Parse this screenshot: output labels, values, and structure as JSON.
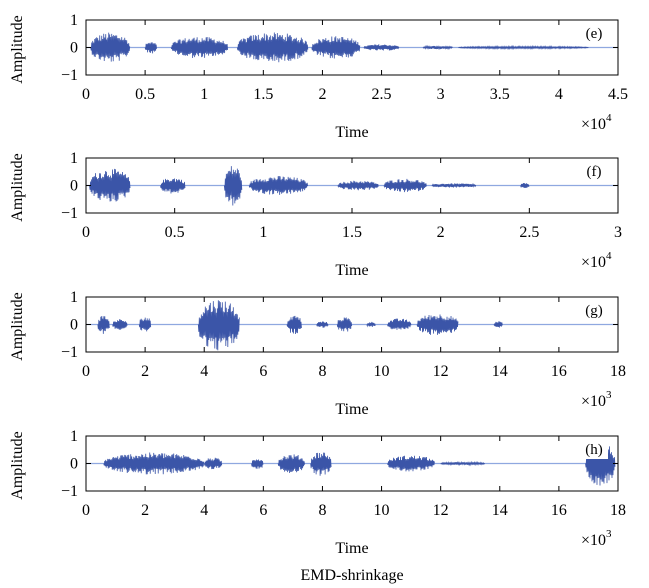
{
  "figure": {
    "caption": "EMD-shrinkage",
    "signal_color": "#3b55a8",
    "baseline_color": "#8fa8e0"
  },
  "chart_data": [
    {
      "type": "line",
      "panel": "(e)",
      "xlabel": "Time",
      "ylabel": "Amplitude",
      "xlim": [
        0,
        45000
      ],
      "ylim": [
        -1,
        1
      ],
      "x_scale": "×10^4",
      "xtick_labels": [
        "0",
        "0.5",
        "1",
        "1.5",
        "2",
        "2.5",
        "3",
        "3.5",
        "4",
        "4.5"
      ],
      "ytick_labels": [
        "1",
        "0",
        "−1"
      ],
      "grid": false,
      "series": [
        {
          "bursts": [
            {
              "start": 400,
              "end": 3700,
              "amp": 0.55
            },
            {
              "start": 5000,
              "end": 6000,
              "amp": 0.22
            },
            {
              "start": 7200,
              "end": 12000,
              "amp": 0.4
            },
            {
              "start": 12800,
              "end": 18800,
              "amp": 0.55
            },
            {
              "start": 19100,
              "end": 23200,
              "amp": 0.42
            },
            {
              "start": 23500,
              "end": 26500,
              "amp": 0.12
            },
            {
              "start": 28500,
              "end": 31000,
              "amp": 0.06
            },
            {
              "start": 31500,
              "end": 42500,
              "amp": 0.04
            }
          ]
        }
      ]
    },
    {
      "type": "line",
      "panel": "(f)",
      "xlabel": "Time",
      "ylabel": "Amplitude",
      "xlim": [
        0,
        30000
      ],
      "ylim": [
        -1,
        1
      ],
      "x_scale": "×10^4",
      "xtick_labels": [
        "0",
        "0.5",
        "1",
        "1.5",
        "2",
        "2.5",
        "3"
      ],
      "ytick_labels": [
        "1",
        "0",
        "−1"
      ],
      "grid": false,
      "series": [
        {
          "bursts": [
            {
              "start": 200,
              "end": 2500,
              "amp": 0.62
            },
            {
              "start": 4200,
              "end": 5600,
              "amp": 0.3
            },
            {
              "start": 7800,
              "end": 8800,
              "amp": 0.75
            },
            {
              "start": 9200,
              "end": 12500,
              "amp": 0.35
            },
            {
              "start": 14200,
              "end": 16500,
              "amp": 0.18
            },
            {
              "start": 16800,
              "end": 19200,
              "amp": 0.25
            },
            {
              "start": 19500,
              "end": 22000,
              "amp": 0.08
            },
            {
              "start": 24500,
              "end": 25000,
              "amp": 0.1
            }
          ]
        }
      ]
    },
    {
      "type": "line",
      "panel": "(g)",
      "xlabel": "Time",
      "ylabel": "Amplitude",
      "xlim": [
        0,
        18000
      ],
      "ylim": [
        -1,
        1
      ],
      "x_scale": "×10^3",
      "xtick_labels": [
        "0",
        "2",
        "4",
        "6",
        "8",
        "10",
        "12",
        "14",
        "16",
        "18"
      ],
      "ytick_labels": [
        "1",
        "0",
        "−1"
      ],
      "grid": false,
      "series": [
        {
          "bursts": [
            {
              "start": 400,
              "end": 800,
              "amp": 0.35
            },
            {
              "start": 900,
              "end": 1400,
              "amp": 0.2
            },
            {
              "start": 1800,
              "end": 2200,
              "amp": 0.3
            },
            {
              "start": 3800,
              "end": 5200,
              "amp": 0.95
            },
            {
              "start": 6800,
              "end": 7300,
              "amp": 0.35
            },
            {
              "start": 7800,
              "end": 8200,
              "amp": 0.12
            },
            {
              "start": 8500,
              "end": 9000,
              "amp": 0.28
            },
            {
              "start": 9500,
              "end": 9800,
              "amp": 0.1
            },
            {
              "start": 10200,
              "end": 11000,
              "amp": 0.22
            },
            {
              "start": 11200,
              "end": 12600,
              "amp": 0.4
            },
            {
              "start": 13800,
              "end": 14100,
              "amp": 0.12
            }
          ]
        }
      ]
    },
    {
      "type": "line",
      "panel": "(h)",
      "xlabel": "Time",
      "ylabel": "Amplitude",
      "xlim": [
        0,
        18000
      ],
      "ylim": [
        -1,
        1
      ],
      "x_scale": "×10^3",
      "xtick_labels": [
        "0",
        "2",
        "4",
        "6",
        "8",
        "10",
        "12",
        "14",
        "16",
        "18"
      ],
      "ytick_labels": [
        "1",
        "0",
        "−1"
      ],
      "grid": false,
      "series": [
        {
          "bursts": [
            {
              "start": 600,
              "end": 4000,
              "amp": 0.4
            },
            {
              "start": 4000,
              "end": 4600,
              "amp": 0.22
            },
            {
              "start": 5600,
              "end": 6000,
              "amp": 0.22
            },
            {
              "start": 6500,
              "end": 7400,
              "amp": 0.35
            },
            {
              "start": 7600,
              "end": 8300,
              "amp": 0.45
            },
            {
              "start": 10200,
              "end": 11800,
              "amp": 0.3
            },
            {
              "start": 12000,
              "end": 13500,
              "amp": 0.05
            },
            {
              "start": 16900,
              "end": 17900,
              "amp": 0.8
            }
          ]
        }
      ]
    }
  ]
}
